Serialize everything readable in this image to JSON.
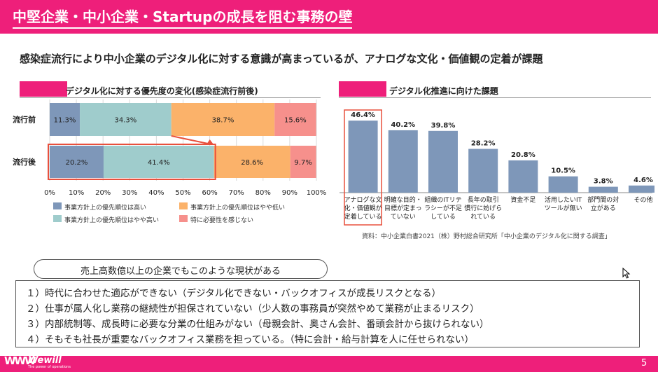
{
  "header": {
    "title": "中堅企業・中小企業・Startupの成長を阻む事務の壁",
    "subtitle": "感染症流行により中小企業のデジタル化に対する意識が高まっているが、アナログな文化・価値観の定着が課題"
  },
  "colors": {
    "brand": "#ee1f7a",
    "series": [
      "#7e97b9",
      "#9fcccc",
      "#fbb26a",
      "#f6908c"
    ],
    "bar": "#7e97b9",
    "highlight": "#e8503d"
  },
  "chart_data": [
    {
      "type": "bar",
      "orientation": "horizontal",
      "stacked": true,
      "title": "デジタル化に対する優先度の変化(感染症流行前後)",
      "categories": [
        "流行前",
        "流行後"
      ],
      "series": [
        {
          "name": "事業方針上の優先順位は高い",
          "values": [
            11.3,
            20.2
          ]
        },
        {
          "name": "事業方針上の優先順位はやや高い",
          "values": [
            34.3,
            41.4
          ]
        },
        {
          "name": "事業方針上の優先順位はやや低い",
          "values": [
            38.7,
            28.6
          ]
        },
        {
          "name": "特に必要性を感じない",
          "values": [
            15.6,
            9.7
          ]
        }
      ],
      "value_labels": [
        [
          "11.3%",
          "34.3%",
          "38.7%",
          "15.6%"
        ],
        [
          "20.2%",
          "41.4%",
          "28.6%",
          "9.7%"
        ]
      ],
      "xlim": [
        0,
        100
      ],
      "xticks": [
        "0%",
        "10%",
        "20%",
        "30%",
        "40%",
        "50%",
        "60%",
        "70%",
        "80%",
        "90%",
        "100%"
      ],
      "grid": true,
      "legend": "bottom"
    },
    {
      "type": "bar",
      "title": "デジタル化推進に向けた課題",
      "categories": [
        [
          "アナログな文",
          "化・価値観が",
          "定着している"
        ],
        [
          "明確な目的・",
          "目標が定まっ",
          "ていない"
        ],
        [
          "組織のITリテ",
          "ラシーが不足",
          "している"
        ],
        [
          "長年の取引",
          "慣行に妨げら",
          "れている"
        ],
        [
          "資金不足"
        ],
        [
          "活用したいIT",
          "ツールが無い"
        ],
        [
          "部門間の対",
          "立がある"
        ],
        [
          "その他"
        ]
      ],
      "values": [
        46.4,
        40.2,
        39.8,
        28.2,
        20.8,
        10.5,
        3.8,
        4.6
      ],
      "value_labels": [
        "46.4%",
        "40.2%",
        "39.8%",
        "28.2%",
        "20.8%",
        "10.5%",
        "3.8%",
        "4.6%"
      ],
      "ylim": [
        0,
        50
      ]
    }
  ],
  "source": "資料：中小企業白書2021（株）野村総合研究所「中小企業のデジタル化に関する調査」",
  "callout": "売上高数億以上の企業でもこのような現状がある",
  "issues": [
    "１）時代に合わせた適応ができない（デジタル化できない・バックオフィスが成長リスクとなる）",
    "２）仕事が属人化し業務の継続性が担保されていない（少人数の事務員が突然やめて業務が止まるリスク）",
    "３）内部統制等、成長時に必要な分業の仕組みがない（母親会計、奥さん会計、番頭会計から抜けられない）",
    "４）そもそも社長が重要なバックオフィス業務を担っている。（特に会計・給与計算を人に任せられない）"
  ],
  "footer": {
    "logo_mark": "WWW",
    "logo_name": "Wewill",
    "logo_tagline": "The power of operations",
    "page_number": "5"
  }
}
